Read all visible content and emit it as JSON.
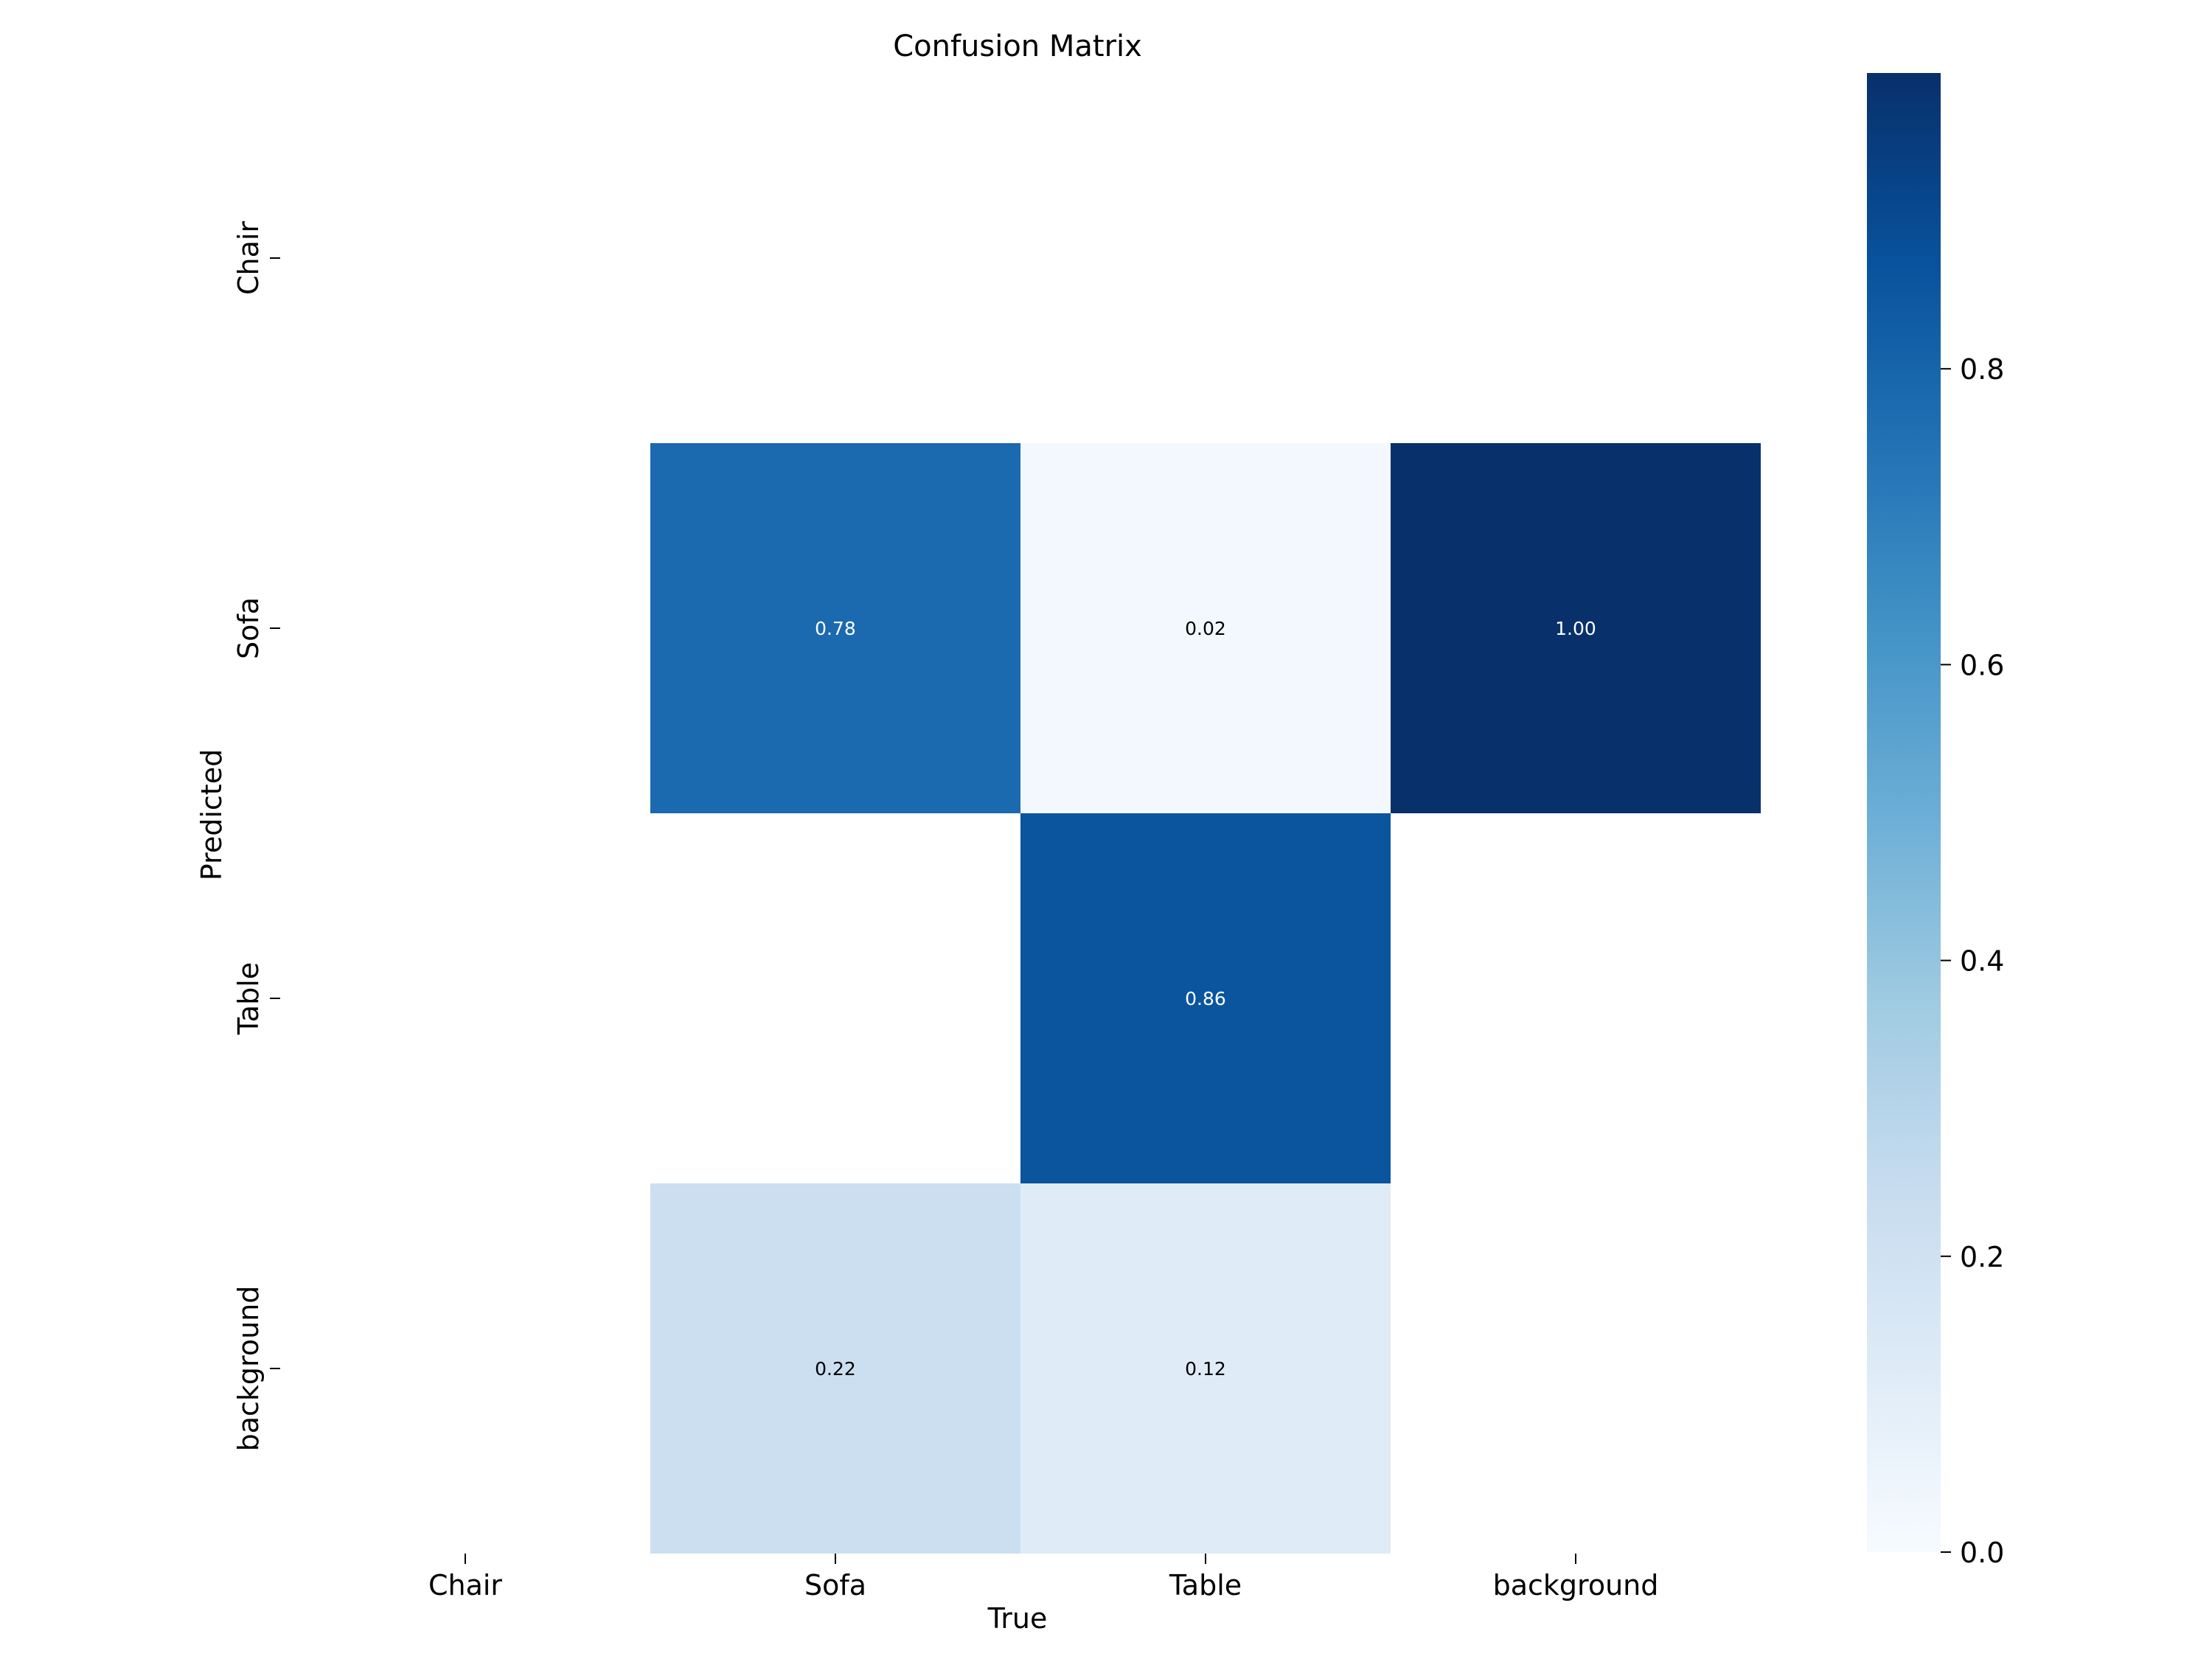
{
  "chart_data": {
    "type": "heatmap",
    "title": "Confusion Matrix",
    "xlabel": "True",
    "ylabel": "Predicted",
    "x_categories": [
      "Chair",
      "Sofa",
      "Table",
      "background"
    ],
    "y_categories": [
      "Chair",
      "Sofa",
      "Table",
      "background"
    ],
    "cells": [
      {
        "row": 1,
        "col": 1,
        "value": 0.78,
        "label": "0.78"
      },
      {
        "row": 1,
        "col": 2,
        "value": 0.02,
        "label": "0.02"
      },
      {
        "row": 1,
        "col": 3,
        "value": 1.0,
        "label": "1.00"
      },
      {
        "row": 2,
        "col": 2,
        "value": 0.86,
        "label": "0.86"
      },
      {
        "row": 3,
        "col": 1,
        "value": 0.22,
        "label": "0.22"
      },
      {
        "row": 3,
        "col": 2,
        "value": 0.12,
        "label": "0.12"
      }
    ],
    "colorbar": {
      "range": [
        0,
        1
      ],
      "ticks": [
        0.0,
        0.2,
        0.4,
        0.6,
        0.8
      ],
      "tick_labels": [
        "0.0",
        "0.2",
        "0.4",
        "0.6",
        "0.8"
      ],
      "colormap": "Blues"
    },
    "grid": false,
    "legend": "none"
  }
}
